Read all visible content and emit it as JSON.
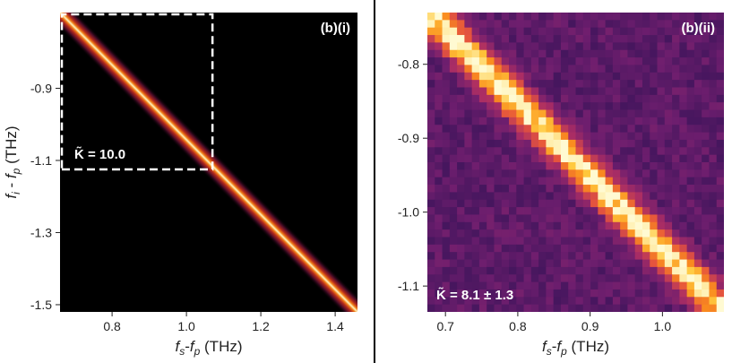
{
  "chart_data": [
    {
      "type": "heatmap",
      "panel_label": "(b)(i)",
      "annotation": "K̃ = 10.0",
      "xlabel": "fs - fp (THz)",
      "ylabel": "fi - fp (THz)",
      "xlim": [
        0.66,
        1.46
      ],
      "ylim": [
        -1.52,
        -0.69
      ],
      "xticks": [
        "0.8",
        "1.0",
        "1.2",
        "1.4"
      ],
      "xtick_values": [
        0.8,
        1.0,
        1.2,
        1.4
      ],
      "yticks": [
        "-0.9",
        "-1.1",
        "-1.3",
        "-1.5"
      ],
      "ytick_values": [
        -0.9,
        -1.1,
        -1.3,
        -1.5
      ],
      "ridge": {
        "x_start": 0.66,
        "y_start": -0.69,
        "x_end": 1.46,
        "y_end": -1.52
      },
      "dashed_box": {
        "x_min": 0.66,
        "x_max": 1.07,
        "y_min": -1.125,
        "y_max": -0.69
      },
      "colormap": "inferno"
    },
    {
      "type": "heatmap",
      "panel_label": "(b)(ii)",
      "annotation": "K̃ = 8.1 ± 1.3",
      "xlabel": "fs - fp (THz)",
      "ylabel": "",
      "xlim": [
        0.675,
        1.085
      ],
      "ylim": [
        -1.135,
        -0.73
      ],
      "xticks": [
        "0.7",
        "0.8",
        "0.9",
        "1.0"
      ],
      "xtick_values": [
        0.7,
        0.8,
        0.9,
        1.0
      ],
      "yticks": [
        "-0.8",
        "-0.9",
        "-1.0",
        "-1.1"
      ],
      "ytick_values": [
        -0.8,
        -0.9,
        -1.0,
        -1.1
      ],
      "grid_size": [
        40,
        40
      ],
      "ridge": {
        "x_start": 0.675,
        "y_start": -0.73,
        "x_end": 1.085,
        "y_end": -1.135
      },
      "colormap": "magma"
    }
  ],
  "axis_label_parts": {
    "fs": "f",
    "fs_sub": "s",
    "fp": "f",
    "fp_sub": "p",
    "fi": "f",
    "fi_sub": "i",
    "minus": " - ",
    "minus_tight": "-",
    "unit": "(THz)"
  },
  "colors": {
    "background_left": "#000000",
    "background_right": "#3a1650",
    "ridge_core": "#fffbd0",
    "ridge_mid": "#ffa020",
    "ridge_edge": "#c0301a",
    "divider": "#000000"
  }
}
